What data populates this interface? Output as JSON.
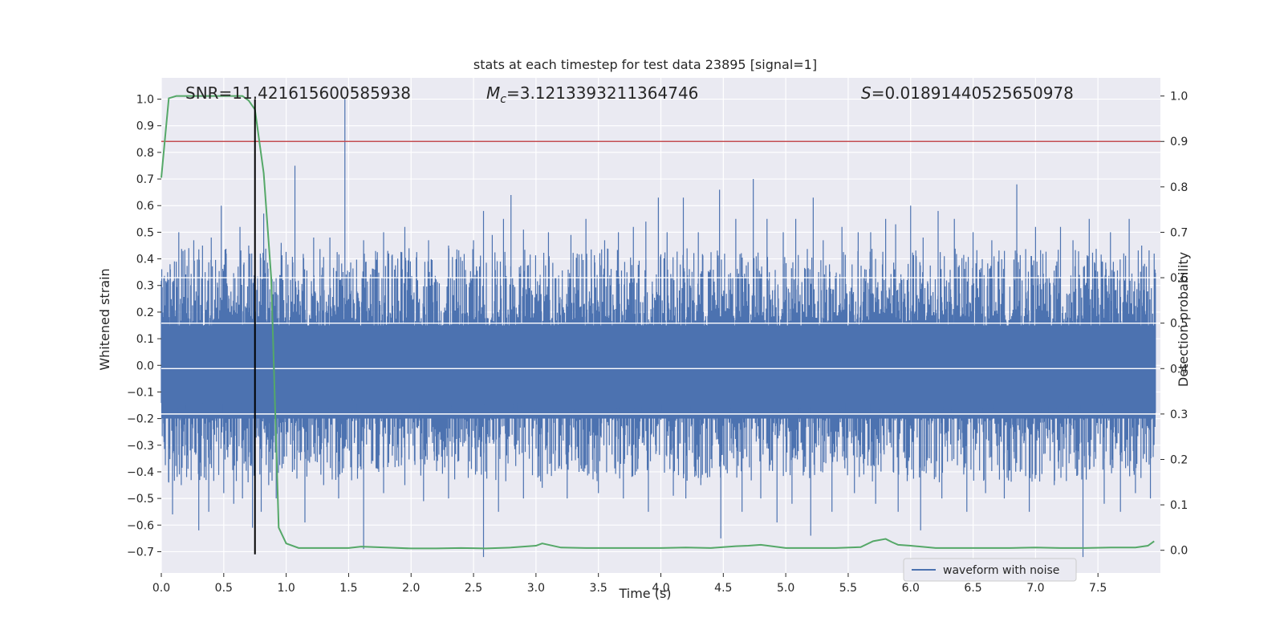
{
  "chart_data": {
    "type": "line",
    "title": "stats at each timestep for test data 23895 [signal=1]",
    "xlabel": "Time (s)",
    "ylabel_left": "Whitened strain",
    "ylabel_right": "Detection probability",
    "xlim": [
      0.0,
      8.0
    ],
    "ylim_left": [
      -0.78,
      1.08
    ],
    "ylim_right": [
      -0.05,
      1.04
    ],
    "x_ticks": [
      "0.0",
      "0.5",
      "1.0",
      "1.5",
      "2.0",
      "2.5",
      "3.0",
      "3.5",
      "4.0",
      "4.5",
      "5.0",
      "5.5",
      "6.0",
      "6.5",
      "7.0",
      "7.5"
    ],
    "y_ticks_left": [
      "1.0",
      "0.9",
      "0.8",
      "0.7",
      "0.6",
      "0.5",
      "0.4",
      "0.3",
      "0.2",
      "0.1",
      "0.0",
      "−0.1",
      "−0.2",
      "−0.3",
      "−0.4",
      "−0.5",
      "−0.6",
      "−0.7"
    ],
    "y_ticks_right": [
      "1.0",
      "0.9",
      "0.8",
      "0.7",
      "0.6",
      "0.5",
      "0.4",
      "0.3",
      "0.2",
      "0.1",
      "0.0"
    ],
    "grid": true,
    "legend_position": "lower-right",
    "annotations": {
      "snr": "SNR=11.421615600585938",
      "mc_symbol": "M",
      "mc_sub": "c",
      "mc_value": "=3.1213393211364746",
      "s_symbol": "S",
      "s_value": "=0.01891440525650978"
    },
    "threshold_right": 0.9,
    "marker_time": 0.75,
    "series": [
      {
        "name": "waveform with noise",
        "color": "#4c72b0",
        "envelope_positive_peaks": [
          [
            0.02,
            0.33
          ],
          [
            0.07,
            0.38
          ],
          [
            0.14,
            0.5
          ],
          [
            0.22,
            0.44
          ],
          [
            0.26,
            0.47
          ],
          [
            0.33,
            0.45
          ],
          [
            0.4,
            0.48
          ],
          [
            0.48,
            0.6
          ],
          [
            0.52,
            0.42
          ],
          [
            0.63,
            0.52
          ],
          [
            0.7,
            0.45
          ],
          [
            0.82,
            0.57
          ],
          [
            0.96,
            0.46
          ],
          [
            1.07,
            0.75
          ],
          [
            1.22,
            0.48
          ],
          [
            1.35,
            0.48
          ],
          [
            1.47,
            1.0
          ],
          [
            1.62,
            0.47
          ],
          [
            1.78,
            0.5
          ],
          [
            1.95,
            0.52
          ],
          [
            2.14,
            0.47
          ],
          [
            2.3,
            0.45
          ],
          [
            2.5,
            0.47
          ],
          [
            2.58,
            0.58
          ],
          [
            2.65,
            0.49
          ],
          [
            2.74,
            0.55
          ],
          [
            2.8,
            0.64
          ],
          [
            2.9,
            0.51
          ],
          [
            3.1,
            0.5
          ],
          [
            3.28,
            0.49
          ],
          [
            3.4,
            0.55
          ],
          [
            3.55,
            0.47
          ],
          [
            3.66,
            0.5
          ],
          [
            3.78,
            0.52
          ],
          [
            3.88,
            0.54
          ],
          [
            3.98,
            0.63
          ],
          [
            4.05,
            0.5
          ],
          [
            4.18,
            0.63
          ],
          [
            4.3,
            0.5
          ],
          [
            4.47,
            0.66
          ],
          [
            4.6,
            0.55
          ],
          [
            4.74,
            0.7
          ],
          [
            4.85,
            0.55
          ],
          [
            4.98,
            0.5
          ],
          [
            5.08,
            0.55
          ],
          [
            5.22,
            0.63
          ],
          [
            5.3,
            0.47
          ],
          [
            5.45,
            0.52
          ],
          [
            5.58,
            0.5
          ],
          [
            5.68,
            0.5
          ],
          [
            5.8,
            0.55
          ],
          [
            5.88,
            0.53
          ],
          [
            6.0,
            0.6
          ],
          [
            6.1,
            0.48
          ],
          [
            6.22,
            0.58
          ],
          [
            6.35,
            0.55
          ],
          [
            6.5,
            0.5
          ],
          [
            6.65,
            0.47
          ],
          [
            6.85,
            0.68
          ],
          [
            7.0,
            0.52
          ],
          [
            7.2,
            0.52
          ],
          [
            7.3,
            0.47
          ],
          [
            7.43,
            0.55
          ],
          [
            7.6,
            0.5
          ],
          [
            7.75,
            0.55
          ],
          [
            7.85,
            0.45
          ],
          [
            7.95,
            0.42
          ]
        ],
        "envelope_negative_peaks": [
          [
            0.02,
            -0.27
          ],
          [
            0.06,
            -0.44
          ],
          [
            0.09,
            -0.56
          ],
          [
            0.16,
            -0.45
          ],
          [
            0.3,
            -0.62
          ],
          [
            0.38,
            -0.55
          ],
          [
            0.5,
            -0.48
          ],
          [
            0.58,
            -0.52
          ],
          [
            0.65,
            -0.5
          ],
          [
            0.73,
            -0.61
          ],
          [
            0.8,
            -0.55
          ],
          [
            0.86,
            -0.45
          ],
          [
            0.92,
            -0.5
          ],
          [
            1.05,
            -0.4
          ],
          [
            1.15,
            -0.59
          ],
          [
            1.3,
            -0.45
          ],
          [
            1.42,
            -0.5
          ],
          [
            1.62,
            -0.69
          ],
          [
            1.78,
            -0.48
          ],
          [
            1.95,
            -0.45
          ],
          [
            2.1,
            -0.51
          ],
          [
            2.3,
            -0.5
          ],
          [
            2.58,
            -0.72
          ],
          [
            2.7,
            -0.55
          ],
          [
            2.9,
            -0.5
          ],
          [
            3.05,
            -0.46
          ],
          [
            3.25,
            -0.5
          ],
          [
            3.5,
            -0.48
          ],
          [
            3.7,
            -0.5
          ],
          [
            3.9,
            -0.55
          ],
          [
            4.1,
            -0.49
          ],
          [
            4.2,
            -0.5
          ],
          [
            4.32,
            -0.45
          ],
          [
            4.48,
            -0.65
          ],
          [
            4.65,
            -0.55
          ],
          [
            4.8,
            -0.5
          ],
          [
            4.93,
            -0.59
          ],
          [
            5.05,
            -0.52
          ],
          [
            5.2,
            -0.64
          ],
          [
            5.37,
            -0.55
          ],
          [
            5.55,
            -0.48
          ],
          [
            5.72,
            -0.52
          ],
          [
            5.9,
            -0.55
          ],
          [
            6.08,
            -0.62
          ],
          [
            6.25,
            -0.5
          ],
          [
            6.45,
            -0.55
          ],
          [
            6.6,
            -0.48
          ],
          [
            6.75,
            -0.5
          ],
          [
            6.95,
            -0.55
          ],
          [
            7.15,
            -0.45
          ],
          [
            7.38,
            -0.72
          ],
          [
            7.55,
            -0.52
          ],
          [
            7.68,
            -0.55
          ],
          [
            7.8,
            -0.48
          ],
          [
            7.92,
            -0.5
          ]
        ]
      },
      {
        "name": "",
        "color": "#55a868",
        "axis": "right",
        "x": [
          0.0,
          0.06,
          0.12,
          0.2,
          0.3,
          0.4,
          0.5,
          0.55,
          0.6,
          0.65,
          0.7,
          0.75,
          0.82,
          0.88,
          0.94,
          1.0,
          1.1,
          1.3,
          1.5,
          1.6,
          1.8,
          2.0,
          2.2,
          2.4,
          2.6,
          2.8,
          3.0,
          3.05,
          3.2,
          3.4,
          3.6,
          3.8,
          4.0,
          4.2,
          4.4,
          4.6,
          4.7,
          4.8,
          5.0,
          5.2,
          5.4,
          5.6,
          5.7,
          5.8,
          5.85,
          5.9,
          6.0,
          6.2,
          6.4,
          6.6,
          6.8,
          7.0,
          7.2,
          7.4,
          7.6,
          7.8,
          7.9,
          7.95
        ],
        "y": [
          0.82,
          0.995,
          1.0,
          1.0,
          1.0,
          1.0,
          1.0,
          1.0,
          1.0,
          1.0,
          0.99,
          0.97,
          0.83,
          0.6,
          0.05,
          0.015,
          0.005,
          0.005,
          0.005,
          0.008,
          0.006,
          0.004,
          0.004,
          0.005,
          0.004,
          0.006,
          0.01,
          0.015,
          0.006,
          0.005,
          0.005,
          0.005,
          0.005,
          0.006,
          0.005,
          0.009,
          0.01,
          0.012,
          0.005,
          0.005,
          0.005,
          0.007,
          0.02,
          0.025,
          0.018,
          0.012,
          0.01,
          0.005,
          0.005,
          0.005,
          0.005,
          0.006,
          0.005,
          0.005,
          0.006,
          0.006,
          0.01,
          0.02
        ]
      }
    ]
  }
}
